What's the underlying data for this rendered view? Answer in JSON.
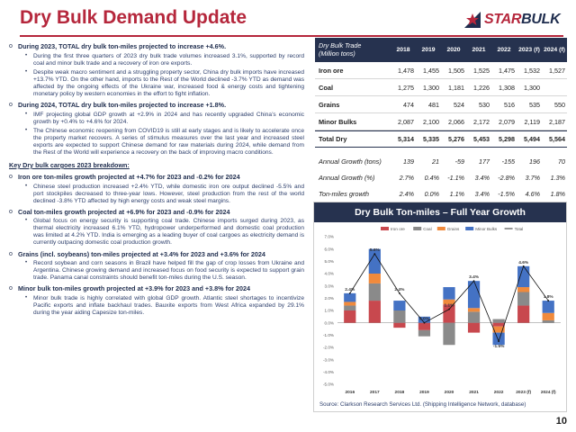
{
  "title": "Dry Bulk Demand Update",
  "logo": {
    "star": "STAR",
    "bulk": "BULK",
    "icon": "star-bulk-logo-icon"
  },
  "left": [
    {
      "type": "l1",
      "text": "During 2023, TOTAL dry bulk ton-miles projected to increase +4.6%."
    },
    {
      "type": "l2",
      "text": "During the first three quarters of 2023 dry bulk trade volumes increased 3.1%, supported by record coal and minor bulk trade and a recovery of iron ore exports."
    },
    {
      "type": "l2",
      "text": "Despite weak macro sentiment and a struggling property sector, China dry bulk imports have increased +13.7% YTD. On the other hand, imports to the Rest of the World declined -3.7% YTD as demand was affected by the ongoing effects of the Ukraine war, increased food & energy costs and tightening monetary policy by western economies in the effort to fight inflation."
    },
    {
      "type": "l1",
      "text": "During 2024, TOTAL dry bulk ton-miles projected to increase +1.8%."
    },
    {
      "type": "l2",
      "text": "IMF projecting global GDP growth at +2.9% in 2024 and has recently upgraded China’s economic growth by +0.4% to +4.6% for 2024."
    },
    {
      "type": "l2",
      "text": "The Chinese economic reopening from COVID19 is still at early stages and is likely to accelerate once the property market recovers. A series of stimulus measures over the last year and increased steel exports are expected to support Chinese demand for raw materials during 2024, while demand from the Rest of the World will experience a recovery on the back of improving macro conditions."
    },
    {
      "type": "sec",
      "text": "Key Dry bulk cargoes 2023 breakdown:"
    },
    {
      "type": "l1",
      "text": "Iron ore ton-miles growth projected at +4.7% for 2023 and -0.2% for 2024"
    },
    {
      "type": "l2",
      "text": "Chinese steel production increased +2.4% YTD, while domestic iron ore output declined -5.5% and port stockpiles decreased to three-year lows. However, steel production from the rest of the world declined -3.8% YTD affected by high energy costs and weak steel margins."
    },
    {
      "type": "l1",
      "text": "Coal ton-miles growth projected at +6.9% for 2023 and -0.9% for 2024"
    },
    {
      "type": "l2",
      "text": "Global focus on energy security is supporting coal trade. Chinese imports surged during 2023, as thermal electricity increased 6.1% YTD, hydropower underperformed and domestic coal production was limited at 4.2% YTD. India is emerging as a leading buyer of coal cargoes as electricity demand is currently outpacing domestic coal production growth."
    },
    {
      "type": "l1",
      "text": "Grains (incl. soybeans) ton-miles projected at +3.4% for 2023 and +3.6% for 2024"
    },
    {
      "type": "l2",
      "text": "Record soybean and corn seasons in Brazil have helped fill the gap of crop losses from Ukraine and Argentina. Chinese growing demand and increased focus on food security is expected to support grain trade. Panama canal constraints should benefit ton-miles during the U.S. season."
    },
    {
      "type": "l1",
      "text": "Minor bulk ton-miles growth projected at +3.9% for 2023 and +3.8% for 2024"
    },
    {
      "type": "l2",
      "text": "Minor bulk trade is highly correlated with global GDP growth. Atlantic steel shortages to incentivize Pacific exports and inflate backhaul trades. Bauxite exports from West Africa expanded by 29.1% during the year aiding Capesize ton-miles."
    }
  ],
  "table": {
    "header_label": [
      "Dry Bulk Trade",
      "(Million tons)"
    ],
    "years": [
      "2018",
      "2019",
      "2020",
      "2021",
      "2022",
      "2023 (f)",
      "2024 (f)"
    ],
    "rows": [
      {
        "label": "Iron ore",
        "values": [
          "1,478",
          "1,455",
          "1,505",
          "1,525",
          "1,475",
          "1,532",
          "1,527"
        ]
      },
      {
        "label": "Coal",
        "values": [
          "1,275",
          "1,300",
          "1,181",
          "1,226",
          "1,308",
          "1,300",
          ""
        ]
      },
      {
        "label": "Grains",
        "values": [
          "474",
          "481",
          "524",
          "530",
          "516",
          "535",
          "550"
        ]
      },
      {
        "label": "Minor Bulks",
        "values": [
          "2,087",
          "2,100",
          "2,066",
          "2,172",
          "2,079",
          "2,119",
          "2,187"
        ]
      }
    ],
    "total": {
      "label": "Total Dry",
      "values": [
        "5,314",
        "5,335",
        "5,276",
        "5,453",
        "5,298",
        "5,494",
        "5,564"
      ]
    },
    "growth": [
      {
        "label": "Annual Growth (tons)",
        "values": [
          "139",
          "21",
          "-59",
          "177",
          "-155",
          "196",
          "70"
        ]
      },
      {
        "label": "Annual Growth (%)",
        "values": [
          "2.7%",
          "0.4%",
          "-1.1%",
          "3.4%",
          "-2.8%",
          "3.7%",
          "1.3%"
        ]
      },
      {
        "label": "Ton-miles growth",
        "values": [
          "2.4%",
          "0.0%",
          "1.1%",
          "3.4%",
          "-1.5%",
          "4.6%",
          "1.8%"
        ]
      }
    ]
  },
  "chart_data": {
    "type": "bar",
    "title": "Dry Bulk Ton-miles – Full Year Growth",
    "categories": [
      "2016",
      "2017",
      "2018",
      "2019",
      "2020",
      "2021",
      "2022",
      "2023 (f)",
      "2024 (f)"
    ],
    "ylim": [
      -5.0,
      7.0
    ],
    "yticks": [
      "-5.0%",
      "-4.0%",
      "-3.0%",
      "-2.0%",
      "-1.0%",
      "0.0%",
      "1.0%",
      "2.0%",
      "3.0%",
      "4.0%",
      "5.0%",
      "6.0%",
      "7.0%"
    ],
    "series": [
      {
        "name": "Iron ore",
        "color": "#c8484e",
        "values": [
          1.0,
          1.8,
          -0.4,
          -0.6,
          1.5,
          -0.8,
          -0.3,
          1.4,
          0.0
        ]
      },
      {
        "name": "Coal",
        "color": "#8a8a8a",
        "values": [
          0.4,
          1.4,
          1.0,
          -0.5,
          -1.8,
          0.9,
          0.3,
          1.1,
          0.2
        ]
      },
      {
        "name": "Grains",
        "color": "#f08a3c",
        "values": [
          0.3,
          0.8,
          0.0,
          0.0,
          0.4,
          0.3,
          -0.5,
          0.4,
          0.6
        ]
      },
      {
        "name": "Minor Bulks",
        "color": "#4472c4",
        "values": [
          0.7,
          2.0,
          0.8,
          0.5,
          1.0,
          2.2,
          -1.0,
          1.7,
          1.0
        ]
      }
    ],
    "total": {
      "name": "Total",
      "values": [
        2.4,
        5.6,
        2.4,
        0.0,
        1.1,
        3.4,
        -1.5,
        4.6,
        1.8
      ]
    },
    "total_labels": [
      "2.4%",
      "5.6%",
      "2.4%",
      "0.0%",
      "1.1%",
      "3.4%",
      "-1.5%",
      "4.6%",
      "1.8%"
    ],
    "source": "Source: Clarkson Research Services Ltd. (Shipping Intelligence Network, database)"
  },
  "page_number": "10"
}
